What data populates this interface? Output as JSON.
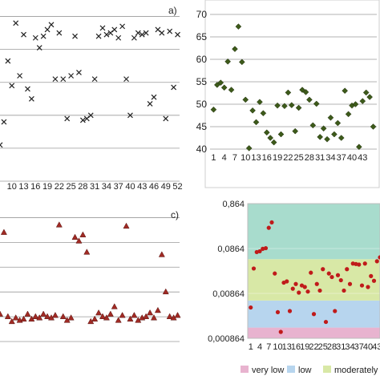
{
  "chart_data": [
    {
      "id": "a",
      "panel_label": "a)",
      "type": "scatter",
      "marker": "x",
      "marker_color": "#222222",
      "x_tick_labels": [
        "10",
        "13",
        "16",
        "19",
        "22",
        "25",
        "28",
        "31",
        "34",
        "37",
        "40",
        "43",
        "46",
        "49",
        "52"
      ],
      "x": [
        7,
        8,
        9,
        10,
        11,
        12,
        13,
        14,
        15,
        16,
        17,
        18,
        19,
        20,
        21,
        22,
        23,
        24,
        25,
        26,
        27,
        28,
        29,
        30,
        31,
        32,
        33,
        34,
        35,
        36,
        37,
        38,
        39,
        40,
        41,
        42,
        43,
        44,
        45,
        46,
        47,
        48,
        49,
        50,
        51,
        52
      ],
      "y": [
        2.2,
        3.6,
        7.3,
        5.8,
        9.6,
        6.4,
        8.9,
        5.6,
        5.0,
        8.7,
        8.1,
        8.8,
        9.2,
        9.5,
        6.2,
        9.0,
        6.2,
        3.8,
        6.4,
        8.8,
        6.6,
        3.7,
        3.8,
        4.0,
        6.2,
        8.8,
        9.3,
        8.9,
        9.0,
        9.2,
        8.7,
        9.4,
        6.2,
        4.0,
        8.7,
        9.0,
        8.9,
        9.0,
        4.7,
        5.1,
        9.2,
        9.0,
        3.8,
        9.1,
        5.7,
        8.9
      ],
      "ylim": [
        0,
        11
      ],
      "grid": true
    },
    {
      "id": "b",
      "type": "scatter",
      "marker": "diamond",
      "marker_color": "#3d5a1a",
      "x_tick_labels": [
        "1",
        "4",
        "7",
        "10",
        "13",
        "16",
        "19",
        "22",
        "25",
        "28",
        "31",
        "34",
        "37",
        "40",
        "43"
      ],
      "y_tick_labels": [
        "40",
        "45",
        "50",
        "55",
        "60",
        "65",
        "70"
      ],
      "x": [
        1,
        2,
        3,
        4,
        5,
        6,
        7,
        8,
        9,
        10,
        11,
        12,
        13,
        14,
        15,
        16,
        17,
        18,
        19,
        20,
        21,
        22,
        23,
        24,
        25,
        26,
        27,
        28,
        29,
        30,
        31,
        32,
        33,
        34,
        35,
        36,
        37,
        38,
        39,
        40,
        41,
        42,
        43,
        44,
        45,
        46
      ],
      "y": [
        48.8,
        54.3,
        54.8,
        53.7,
        59.5,
        53.2,
        62.3,
        67.3,
        59.4,
        51.0,
        40.2,
        48.6,
        46.0,
        50.5,
        48.0,
        43.7,
        42.5,
        41.5,
        49.7,
        43.3,
        49.6,
        52.6,
        49.8,
        44.0,
        49.2,
        53.2,
        52.7,
        51.0,
        45.3,
        50.1,
        42.7,
        44.6,
        42.2,
        47.0,
        43.3,
        45.8,
        42.5,
        53.0,
        47.8,
        49.7,
        50.0,
        40.5,
        50.7,
        52.6,
        51.6,
        45.0
      ],
      "ylim": [
        40,
        70
      ],
      "grid": true
    },
    {
      "id": "c",
      "panel_label": "c)",
      "type": "scatter",
      "marker": "triangle",
      "marker_color": "#a02a24",
      "x_tick_labels": [],
      "x": [
        7,
        8,
        9,
        10,
        11,
        12,
        13,
        14,
        15,
        16,
        17,
        18,
        19,
        20,
        21,
        22,
        23,
        24,
        25,
        26,
        27,
        28,
        29,
        30,
        31,
        32,
        33,
        34,
        35,
        36,
        37,
        38,
        39,
        40,
        41,
        42,
        43,
        44,
        45,
        46,
        47,
        48,
        49,
        50,
        51,
        52
      ],
      "y": [
        2.2,
        8.8,
        2.0,
        1.6,
        1.9,
        1.7,
        1.8,
        2.2,
        1.8,
        2.0,
        1.9,
        2.2,
        2.0,
        1.9,
        2.1,
        9.4,
        2.0,
        1.7,
        1.9,
        8.4,
        8.1,
        8.6,
        7.2,
        1.6,
        1.8,
        2.3,
        2.0,
        1.9,
        2.2,
        2.8,
        1.7,
        2.1,
        9.3,
        1.8,
        2.1,
        1.7,
        1.9,
        2.0,
        2.3,
        1.9,
        2.5,
        7.0,
        4.0,
        2.0,
        1.9,
        2.1
      ],
      "ylim": [
        0,
        11
      ],
      "grid": true
    },
    {
      "id": "d",
      "type": "scatter",
      "marker": "circle",
      "marker_color": "#c01a1a",
      "y_scale": "log",
      "x_tick_labels": [
        "1",
        "4",
        "7",
        "10",
        "13",
        "16",
        "19",
        "22",
        "25",
        "28",
        "31",
        "34",
        "37",
        "40",
        "43"
      ],
      "y_tick_labels": [
        "0,000864",
        "0,00864",
        "0,0864",
        "0,864"
      ],
      "x": [
        1,
        2,
        3,
        4,
        5,
        6,
        7,
        8,
        9,
        10,
        11,
        12,
        13,
        14,
        15,
        16,
        17,
        18,
        19,
        20,
        21,
        22,
        23,
        24,
        25,
        26,
        27,
        28,
        29,
        30,
        31,
        32,
        33,
        34,
        35,
        36,
        37,
        38,
        39,
        40,
        41,
        42,
        43,
        44,
        45,
        46
      ],
      "y": [
        0.0042,
        0.031,
        0.072,
        0.075,
        0.085,
        0.088,
        0.25,
        0.33,
        0.024,
        0.0033,
        0.0012,
        0.015,
        0.016,
        0.0035,
        0.011,
        0.014,
        0.009,
        0.013,
        0.012,
        0.0095,
        0.025,
        0.003,
        0.014,
        0.01,
        0.03,
        0.002,
        0.024,
        0.02,
        0.0035,
        0.022,
        0.017,
        0.01,
        0.03,
        0.014,
        0.04,
        0.039,
        0.038,
        0.013,
        0.04,
        0.012,
        0.021,
        0.0165,
        0.045,
        0.055,
        0.017,
        0.03
      ],
      "ylim": [
        0.000864,
        0.864
      ],
      "bands": [
        {
          "label": "very low",
          "from": 0.000864,
          "to": 0.0015,
          "color": "#e8b3cf"
        },
        {
          "label": "low",
          "from": 0.0015,
          "to": 0.006,
          "color": "#b7d5ee"
        },
        {
          "label": "moderately low",
          "from": 0.006,
          "to": 0.05,
          "color": "#d8e8a6"
        },
        {
          "label": "mo",
          "from": 0.05,
          "to": 0.864,
          "color": "#a8dccd"
        }
      ],
      "legend_position": "bottom"
    }
  ]
}
